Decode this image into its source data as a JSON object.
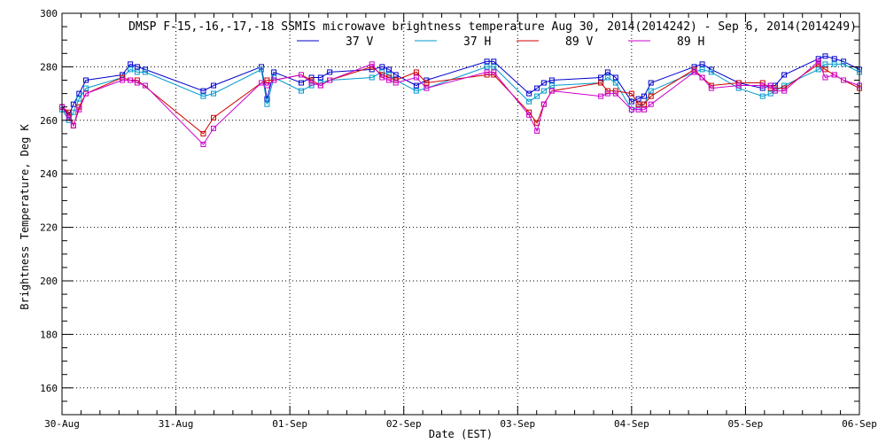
{
  "chart_data": {
    "type": "line",
    "title": "DMSP F-15,-16,-17,-18 SSMIS microwave brightness temperature Aug 30, 2014(2014242) - Sep  6, 2014(2014249)",
    "xlabel": "Date (EST)",
    "ylabel": "Brightness Temperature, Deg K",
    "xlim": [
      0,
      7
    ],
    "ylim": [
      150,
      300
    ],
    "x_ticks": [
      {
        "x": 0,
        "label": "30-Aug"
      },
      {
        "x": 1,
        "label": "31-Aug"
      },
      {
        "x": 2,
        "label": "01-Sep"
      },
      {
        "x": 3,
        "label": "02-Sep"
      },
      {
        "x": 4,
        "label": "03-Sep"
      },
      {
        "x": 5,
        "label": "04-Sep"
      },
      {
        "x": 6,
        "label": "05-Sep"
      },
      {
        "x": 7,
        "label": "06-Sep"
      }
    ],
    "y_ticks": [
      160,
      180,
      200,
      220,
      240,
      260,
      280,
      300
    ],
    "grid": true,
    "legend_position": "top-center",
    "series": [
      {
        "name": "37 V",
        "color": "#0000cc",
        "points": [
          [
            0,
            265
          ],
          [
            0.06,
            262
          ],
          [
            0.1,
            266
          ],
          [
            0.15,
            270
          ],
          [
            0.21,
            275
          ],
          [
            0.53,
            277
          ],
          [
            0.6,
            281
          ],
          [
            0.66,
            280
          ],
          [
            0.73,
            279
          ],
          [
            1.24,
            271
          ],
          [
            1.33,
            273
          ],
          [
            1.75,
            280
          ],
          [
            1.8,
            268
          ],
          [
            1.86,
            278
          ],
          [
            2.1,
            274
          ],
          [
            2.19,
            276
          ],
          [
            2.27,
            276
          ],
          [
            2.35,
            278
          ],
          [
            2.72,
            279
          ],
          [
            2.81,
            280
          ],
          [
            2.87,
            279
          ],
          [
            2.93,
            277
          ],
          [
            3.11,
            273
          ],
          [
            3.2,
            275
          ],
          [
            3.73,
            282
          ],
          [
            3.79,
            282
          ],
          [
            4.1,
            270
          ],
          [
            4.17,
            272
          ],
          [
            4.23,
            274
          ],
          [
            4.3,
            275
          ],
          [
            4.73,
            276
          ],
          [
            4.79,
            278
          ],
          [
            4.86,
            276
          ],
          [
            5.0,
            267
          ],
          [
            5.06,
            268
          ],
          [
            5.11,
            269
          ],
          [
            5.17,
            274
          ],
          [
            5.55,
            280
          ],
          [
            5.62,
            281
          ],
          [
            5.7,
            279
          ],
          [
            5.94,
            274
          ],
          [
            6.15,
            272
          ],
          [
            6.22,
            273
          ],
          [
            6.26,
            273
          ],
          [
            6.34,
            277
          ],
          [
            6.64,
            283
          ],
          [
            6.7,
            284
          ],
          [
            6.78,
            283
          ],
          [
            6.86,
            282
          ],
          [
            7.0,
            279
          ]
        ]
      },
      {
        "name": "37 H",
        "color": "#0099cc",
        "points": [
          [
            0,
            264
          ],
          [
            0.06,
            260
          ],
          [
            0.1,
            263
          ],
          [
            0.15,
            268
          ],
          [
            0.21,
            272
          ],
          [
            0.53,
            276
          ],
          [
            0.6,
            279
          ],
          [
            0.66,
            278
          ],
          [
            0.73,
            278
          ],
          [
            1.24,
            269
          ],
          [
            1.33,
            270
          ],
          [
            1.75,
            279
          ],
          [
            1.8,
            266
          ],
          [
            1.86,
            276
          ],
          [
            2.1,
            271
          ],
          [
            2.19,
            273
          ],
          [
            2.27,
            274
          ],
          [
            2.35,
            275
          ],
          [
            2.72,
            276
          ],
          [
            2.81,
            278
          ],
          [
            2.87,
            277
          ],
          [
            2.93,
            275
          ],
          [
            3.11,
            271
          ],
          [
            3.2,
            272
          ],
          [
            3.73,
            280
          ],
          [
            3.79,
            280
          ],
          [
            4.1,
            267
          ],
          [
            4.17,
            269
          ],
          [
            4.23,
            271
          ],
          [
            4.3,
            273
          ],
          [
            4.73,
            274
          ],
          [
            4.79,
            276
          ],
          [
            4.86,
            274
          ],
          [
            5.0,
            264
          ],
          [
            5.06,
            265
          ],
          [
            5.11,
            266
          ],
          [
            5.17,
            271
          ],
          [
            5.55,
            278
          ],
          [
            5.62,
            279
          ],
          [
            5.7,
            278
          ],
          [
            5.94,
            272
          ],
          [
            6.15,
            269
          ],
          [
            6.22,
            270
          ],
          [
            6.26,
            271
          ],
          [
            6.34,
            273
          ],
          [
            6.64,
            279
          ],
          [
            6.7,
            281
          ],
          [
            6.78,
            281
          ],
          [
            6.86,
            281
          ],
          [
            7.0,
            278
          ]
        ]
      },
      {
        "name": "89 V",
        "color": "#cc0000",
        "points": [
          [
            0,
            265
          ],
          [
            0.06,
            263
          ],
          [
            0.1,
            258
          ],
          [
            0.15,
            265
          ],
          [
            0.21,
            270
          ],
          [
            0.53,
            276
          ],
          [
            0.6,
            275
          ],
          [
            0.66,
            275
          ],
          [
            1.24,
            255
          ],
          [
            1.33,
            261
          ],
          [
            1.75,
            274
          ],
          [
            1.8,
            275
          ],
          [
            1.86,
            275
          ],
          [
            2.1,
            277
          ],
          [
            2.19,
            275
          ],
          [
            2.27,
            273
          ],
          [
            2.35,
            275
          ],
          [
            2.72,
            280
          ],
          [
            2.81,
            277
          ],
          [
            2.87,
            276
          ],
          [
            2.93,
            275
          ],
          [
            3.11,
            278
          ],
          [
            3.2,
            274
          ],
          [
            3.73,
            277
          ],
          [
            3.79,
            277
          ],
          [
            4.1,
            263
          ],
          [
            4.17,
            259
          ],
          [
            4.23,
            266
          ],
          [
            4.3,
            271
          ],
          [
            4.73,
            274
          ],
          [
            4.79,
            271
          ],
          [
            4.86,
            271
          ],
          [
            5.0,
            270
          ],
          [
            5.06,
            266
          ],
          [
            5.11,
            266
          ],
          [
            5.17,
            269
          ],
          [
            5.55,
            279
          ],
          [
            5.62,
            276
          ],
          [
            5.7,
            273
          ],
          [
            5.94,
            274
          ],
          [
            6.15,
            274
          ],
          [
            6.22,
            272
          ],
          [
            6.26,
            272
          ],
          [
            6.34,
            272
          ],
          [
            6.64,
            281
          ],
          [
            6.7,
            279
          ],
          [
            6.78,
            277
          ],
          [
            6.86,
            275
          ],
          [
            7.0,
            272
          ]
        ]
      },
      {
        "name": "89 H",
        "color": "#cc00cc",
        "points": [
          [
            0,
            265
          ],
          [
            0.06,
            261
          ],
          [
            0.1,
            258
          ],
          [
            0.15,
            264
          ],
          [
            0.21,
            270
          ],
          [
            0.53,
            275
          ],
          [
            0.6,
            275
          ],
          [
            0.66,
            274
          ],
          [
            0.73,
            273
          ],
          [
            1.24,
            251
          ],
          [
            1.33,
            257
          ],
          [
            1.75,
            274
          ],
          [
            1.8,
            273
          ],
          [
            1.86,
            275
          ],
          [
            2.1,
            277
          ],
          [
            2.19,
            274
          ],
          [
            2.27,
            273
          ],
          [
            2.35,
            275
          ],
          [
            2.72,
            281
          ],
          [
            2.81,
            276
          ],
          [
            2.87,
            275
          ],
          [
            2.93,
            274
          ],
          [
            3.11,
            276
          ],
          [
            3.2,
            272
          ],
          [
            3.73,
            278
          ],
          [
            3.79,
            278
          ],
          [
            4.1,
            262
          ],
          [
            4.17,
            256
          ],
          [
            4.23,
            266
          ],
          [
            4.3,
            271
          ],
          [
            4.73,
            269
          ],
          [
            4.79,
            270
          ],
          [
            4.86,
            270
          ],
          [
            5.0,
            264
          ],
          [
            5.06,
            264
          ],
          [
            5.11,
            264
          ],
          [
            5.17,
            266
          ],
          [
            5.55,
            278
          ],
          [
            5.62,
            276
          ],
          [
            5.7,
            272
          ],
          [
            5.94,
            273
          ],
          [
            6.15,
            273
          ],
          [
            6.22,
            273
          ],
          [
            6.26,
            271
          ],
          [
            6.34,
            271
          ],
          [
            6.64,
            282
          ],
          [
            6.7,
            276
          ],
          [
            6.78,
            277
          ],
          [
            6.86,
            275
          ],
          [
            7.0,
            273
          ]
        ]
      }
    ]
  }
}
